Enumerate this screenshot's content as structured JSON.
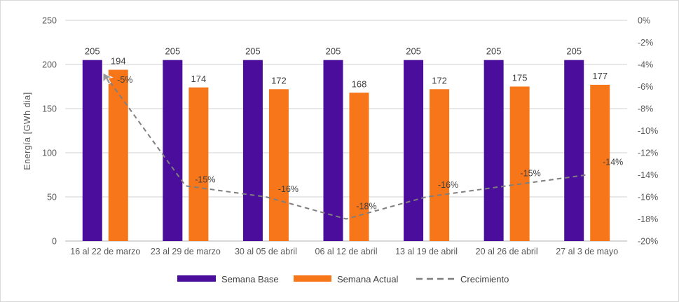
{
  "chart_data": {
    "type": "combo_bar_line",
    "title": "",
    "ylabel_left": "Energía [GWh dia]",
    "categories": [
      "16 al 22 de marzo",
      "23 al 29 de marzo",
      "30 al 05 de abril",
      "06 al 12 de abril",
      "13 al 19 de abril",
      "20 al 26 de abril",
      "27 al 3 de mayo"
    ],
    "series": [
      {
        "name": "Semana Base",
        "type": "bar",
        "color": "#4B0D9C",
        "values": [
          205,
          205,
          205,
          205,
          205,
          205,
          205
        ],
        "data_labels": [
          "205",
          "205",
          "205",
          "205",
          "205",
          "205",
          "205"
        ]
      },
      {
        "name": "Semana Actual",
        "type": "bar",
        "color": "#F7761A",
        "values": [
          194,
          174,
          172,
          168,
          172,
          175,
          177
        ],
        "data_labels": [
          "194",
          "174",
          "172",
          "168",
          "172",
          "175",
          "177"
        ]
      },
      {
        "name": "Crecimiento",
        "type": "line",
        "dashed": true,
        "color": "#7F7F7F",
        "axis": "right",
        "values_percent": [
          -5,
          -15,
          -16,
          -18,
          -16,
          -15,
          -14
        ],
        "point_labels": [
          "-5%",
          "-15%",
          "-16%",
          "-18%",
          "-16%",
          "-15%",
          "-14%"
        ]
      }
    ],
    "axis_left": {
      "min": 0,
      "max": 250,
      "tick_labels": [
        "0",
        "50",
        "100",
        "150",
        "200",
        "250"
      ]
    },
    "axis_right": {
      "min": -20,
      "max": 0,
      "tick_labels": [
        "0%",
        "-2%",
        "-4%",
        "-6%",
        "-8%",
        "-10%",
        "-12%",
        "-14%",
        "-16%",
        "-18%",
        "-20%"
      ]
    },
    "grid": "horizontal",
    "legend": {
      "position": "bottom",
      "items": [
        {
          "label": "Semana Base",
          "swatch": "bar",
          "color": "#4B0D9C"
        },
        {
          "label": "Semana Actual",
          "swatch": "bar",
          "color": "#F7761A"
        },
        {
          "label": "Crecimiento",
          "swatch": "dashed-line",
          "color": "#7F7F7F"
        }
      ]
    }
  },
  "ui": {
    "cursor_icon": "arrow-pointer",
    "colors": {
      "background": "#FFFFFF",
      "border": "#D9D9D9",
      "grid": "#D9D9D9",
      "axis_line": "#BFBFBF",
      "tick_text": "#595959",
      "label_text": "#404040",
      "cursor": "#9A9A9A"
    }
  }
}
